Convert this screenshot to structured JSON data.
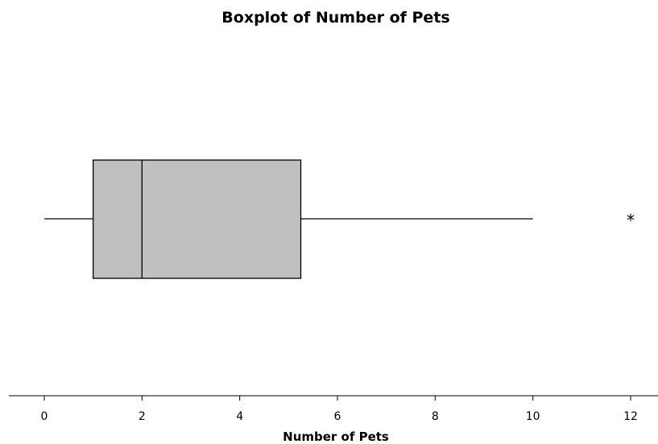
{
  "chart_data": {
    "type": "boxplot",
    "title": "Boxplot of Number of Pets",
    "xlabel": "Number of Pets",
    "ylabel": "",
    "xlim": [
      0,
      12
    ],
    "x_ticks": [
      0,
      2,
      4,
      6,
      8,
      10,
      12
    ],
    "tick_labels": [
      "0",
      "2",
      "4",
      "6",
      "8",
      "10",
      "12"
    ],
    "orientation": "horizontal",
    "grid": false,
    "legend": "none",
    "box": {
      "whisker_low": 0,
      "q1": 1,
      "median": 2,
      "q3": 5.25,
      "whisker_high": 10
    },
    "outliers": [
      12
    ],
    "outlier_marker": "*",
    "box_fill": "#c0c0c0",
    "line_color": "#000000"
  }
}
